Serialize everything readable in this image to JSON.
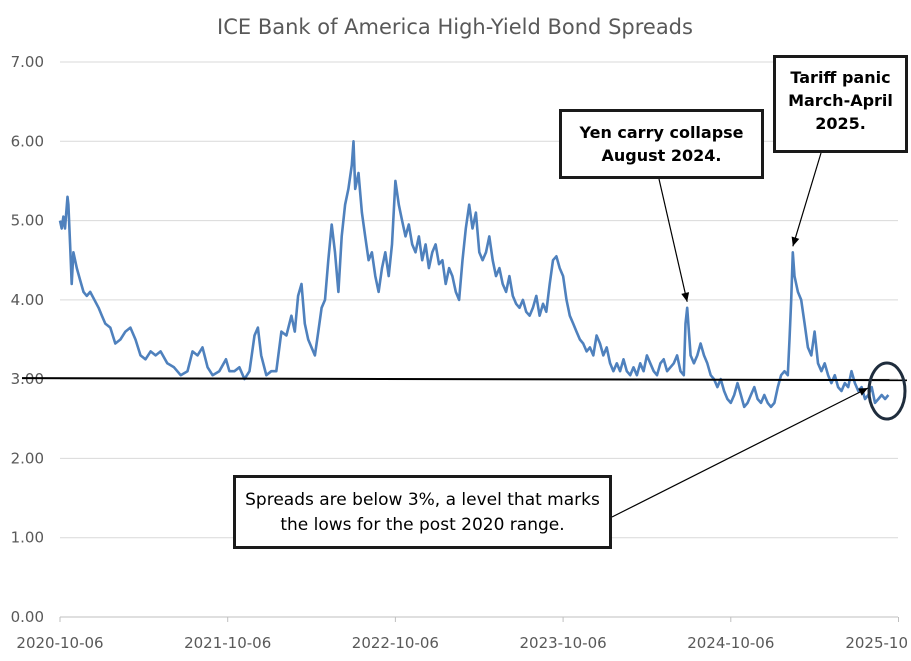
{
  "chart_data": {
    "type": "line",
    "title": "ICE Bank of America High-Yield Bond Spreads",
    "xlabel": "",
    "ylabel": "",
    "ylim": [
      0,
      7
    ],
    "yticks": [
      "0.00",
      "1.00",
      "2.00",
      "3.00",
      "4.00",
      "5.00",
      "6.00",
      "7.00"
    ],
    "grid": true,
    "xticks": [
      {
        "label": "2020-10-06",
        "t": 0
      },
      {
        "label": "2021-10-06",
        "t": 1
      },
      {
        "label": "2022-10-06",
        "t": 2
      },
      {
        "label": "2023-10-06",
        "t": 3
      },
      {
        "label": "2024-10-06",
        "t": 4
      },
      {
        "label": "2025-10",
        "t": 5
      }
    ],
    "x_unit": "years since 2020-10-06",
    "series": [
      {
        "name": "High-Yield Bond Spread (%)",
        "color": "#4f81bd",
        "points": [
          [
            0.0,
            5.0
          ],
          [
            0.01,
            4.9
          ],
          [
            0.02,
            5.05
          ],
          [
            0.03,
            4.9
          ],
          [
            0.045,
            5.3
          ],
          [
            0.05,
            5.2
          ],
          [
            0.06,
            4.7
          ],
          [
            0.07,
            4.2
          ],
          [
            0.08,
            4.6
          ],
          [
            0.1,
            4.4
          ],
          [
            0.12,
            4.25
          ],
          [
            0.14,
            4.1
          ],
          [
            0.16,
            4.05
          ],
          [
            0.18,
            4.1
          ],
          [
            0.23,
            3.9
          ],
          [
            0.25,
            3.8
          ],
          [
            0.27,
            3.7
          ],
          [
            0.3,
            3.65
          ],
          [
            0.33,
            3.45
          ],
          [
            0.36,
            3.5
          ],
          [
            0.39,
            3.6
          ],
          [
            0.42,
            3.65
          ],
          [
            0.45,
            3.5
          ],
          [
            0.48,
            3.3
          ],
          [
            0.51,
            3.25
          ],
          [
            0.54,
            3.35
          ],
          [
            0.57,
            3.3
          ],
          [
            0.6,
            3.35
          ],
          [
            0.64,
            3.2
          ],
          [
            0.68,
            3.15
          ],
          [
            0.72,
            3.05
          ],
          [
            0.76,
            3.1
          ],
          [
            0.79,
            3.35
          ],
          [
            0.82,
            3.3
          ],
          [
            0.85,
            3.4
          ],
          [
            0.88,
            3.15
          ],
          [
            0.91,
            3.05
          ],
          [
            0.95,
            3.1
          ],
          [
            0.99,
            3.25
          ],
          [
            1.01,
            3.1
          ],
          [
            1.04,
            3.1
          ],
          [
            1.07,
            3.15
          ],
          [
            1.1,
            3.0
          ],
          [
            1.13,
            3.1
          ],
          [
            1.16,
            3.55
          ],
          [
            1.18,
            3.65
          ],
          [
            1.2,
            3.3
          ],
          [
            1.23,
            3.05
          ],
          [
            1.26,
            3.1
          ],
          [
            1.29,
            3.1
          ],
          [
            1.32,
            3.6
          ],
          [
            1.35,
            3.55
          ],
          [
            1.38,
            3.8
          ],
          [
            1.4,
            3.6
          ],
          [
            1.42,
            4.05
          ],
          [
            1.44,
            4.2
          ],
          [
            1.46,
            3.7
          ],
          [
            1.48,
            3.5
          ],
          [
            1.5,
            3.4
          ],
          [
            1.52,
            3.3
          ],
          [
            1.54,
            3.6
          ],
          [
            1.56,
            3.9
          ],
          [
            1.58,
            4.0
          ],
          [
            1.6,
            4.5
          ],
          [
            1.62,
            4.95
          ],
          [
            1.64,
            4.6
          ],
          [
            1.66,
            4.1
          ],
          [
            1.68,
            4.8
          ],
          [
            1.7,
            5.2
          ],
          [
            1.72,
            5.4
          ],
          [
            1.74,
            5.7
          ],
          [
            1.75,
            6.0
          ],
          [
            1.76,
            5.4
          ],
          [
            1.78,
            5.6
          ],
          [
            1.8,
            5.1
          ],
          [
            1.82,
            4.8
          ],
          [
            1.84,
            4.5
          ],
          [
            1.86,
            4.6
          ],
          [
            1.88,
            4.3
          ],
          [
            1.9,
            4.1
          ],
          [
            1.92,
            4.4
          ],
          [
            1.94,
            4.6
          ],
          [
            1.96,
            4.3
          ],
          [
            1.98,
            4.7
          ],
          [
            2.0,
            5.5
          ],
          [
            2.02,
            5.2
          ],
          [
            2.04,
            5.0
          ],
          [
            2.06,
            4.8
          ],
          [
            2.08,
            4.95
          ],
          [
            2.1,
            4.7
          ],
          [
            2.12,
            4.6
          ],
          [
            2.14,
            4.8
          ],
          [
            2.16,
            4.5
          ],
          [
            2.18,
            4.7
          ],
          [
            2.2,
            4.4
          ],
          [
            2.22,
            4.6
          ],
          [
            2.24,
            4.7
          ],
          [
            2.26,
            4.45
          ],
          [
            2.28,
            4.5
          ],
          [
            2.3,
            4.2
          ],
          [
            2.32,
            4.4
          ],
          [
            2.34,
            4.3
          ],
          [
            2.36,
            4.1
          ],
          [
            2.38,
            4.0
          ],
          [
            2.4,
            4.5
          ],
          [
            2.42,
            4.9
          ],
          [
            2.44,
            5.2
          ],
          [
            2.46,
            4.9
          ],
          [
            2.48,
            5.1
          ],
          [
            2.5,
            4.6
          ],
          [
            2.52,
            4.5
          ],
          [
            2.54,
            4.6
          ],
          [
            2.56,
            4.8
          ],
          [
            2.58,
            4.5
          ],
          [
            2.6,
            4.3
          ],
          [
            2.62,
            4.4
          ],
          [
            2.64,
            4.2
          ],
          [
            2.66,
            4.1
          ],
          [
            2.68,
            4.3
          ],
          [
            2.7,
            4.05
          ],
          [
            2.72,
            3.95
          ],
          [
            2.74,
            3.9
          ],
          [
            2.76,
            4.0
          ],
          [
            2.78,
            3.85
          ],
          [
            2.8,
            3.8
          ],
          [
            2.82,
            3.9
          ],
          [
            2.84,
            4.05
          ],
          [
            2.86,
            3.8
          ],
          [
            2.88,
            3.95
          ],
          [
            2.9,
            3.85
          ],
          [
            2.92,
            4.2
          ],
          [
            2.94,
            4.5
          ],
          [
            2.96,
            4.55
          ],
          [
            2.98,
            4.4
          ],
          [
            3.0,
            4.3
          ],
          [
            3.02,
            4.0
          ],
          [
            3.04,
            3.8
          ],
          [
            3.06,
            3.7
          ],
          [
            3.08,
            3.6
          ],
          [
            3.1,
            3.5
          ],
          [
            3.12,
            3.45
          ],
          [
            3.14,
            3.35
          ],
          [
            3.16,
            3.4
          ],
          [
            3.18,
            3.3
          ],
          [
            3.2,
            3.55
          ],
          [
            3.22,
            3.45
          ],
          [
            3.24,
            3.3
          ],
          [
            3.26,
            3.4
          ],
          [
            3.28,
            3.2
          ],
          [
            3.3,
            3.1
          ],
          [
            3.32,
            3.2
          ],
          [
            3.34,
            3.1
          ],
          [
            3.36,
            3.25
          ],
          [
            3.38,
            3.1
          ],
          [
            3.4,
            3.05
          ],
          [
            3.42,
            3.15
          ],
          [
            3.44,
            3.05
          ],
          [
            3.46,
            3.2
          ],
          [
            3.48,
            3.1
          ],
          [
            3.5,
            3.3
          ],
          [
            3.52,
            3.2
          ],
          [
            3.54,
            3.1
          ],
          [
            3.56,
            3.05
          ],
          [
            3.58,
            3.2
          ],
          [
            3.6,
            3.25
          ],
          [
            3.62,
            3.1
          ],
          [
            3.64,
            3.15
          ],
          [
            3.66,
            3.2
          ],
          [
            3.68,
            3.3
          ],
          [
            3.7,
            3.1
          ],
          [
            3.72,
            3.05
          ],
          [
            3.73,
            3.7
          ],
          [
            3.74,
            3.9
          ],
          [
            3.75,
            3.6
          ],
          [
            3.76,
            3.3
          ],
          [
            3.78,
            3.2
          ],
          [
            3.8,
            3.3
          ],
          [
            3.82,
            3.45
          ],
          [
            3.84,
            3.3
          ],
          [
            3.86,
            3.2
          ],
          [
            3.88,
            3.05
          ],
          [
            3.9,
            3.0
          ],
          [
            3.92,
            2.9
          ],
          [
            3.94,
            3.0
          ],
          [
            3.96,
            2.85
          ],
          [
            3.98,
            2.75
          ],
          [
            4.0,
            2.7
          ],
          [
            4.02,
            2.8
          ],
          [
            4.04,
            2.95
          ],
          [
            4.06,
            2.8
          ],
          [
            4.08,
            2.65
          ],
          [
            4.1,
            2.7
          ],
          [
            4.12,
            2.8
          ],
          [
            4.14,
            2.9
          ],
          [
            4.16,
            2.75
          ],
          [
            4.18,
            2.7
          ],
          [
            4.2,
            2.8
          ],
          [
            4.22,
            2.7
          ],
          [
            4.24,
            2.65
          ],
          [
            4.26,
            2.7
          ],
          [
            4.28,
            2.9
          ],
          [
            4.3,
            3.05
          ],
          [
            4.32,
            3.1
          ],
          [
            4.34,
            3.05
          ],
          [
            4.35,
            3.5
          ],
          [
            4.36,
            4.0
          ],
          [
            4.37,
            4.6
          ],
          [
            4.38,
            4.3
          ],
          [
            4.4,
            4.1
          ],
          [
            4.42,
            4.0
          ],
          [
            4.44,
            3.7
          ],
          [
            4.46,
            3.4
          ],
          [
            4.48,
            3.3
          ],
          [
            4.5,
            3.6
          ],
          [
            4.52,
            3.2
          ],
          [
            4.54,
            3.1
          ],
          [
            4.56,
            3.2
          ],
          [
            4.58,
            3.05
          ],
          [
            4.6,
            2.95
          ],
          [
            4.62,
            3.05
          ],
          [
            4.64,
            2.9
          ],
          [
            4.66,
            2.85
          ],
          [
            4.68,
            2.95
          ],
          [
            4.7,
            2.9
          ],
          [
            4.72,
            3.1
          ],
          [
            4.74,
            2.95
          ],
          [
            4.76,
            2.85
          ],
          [
            4.78,
            2.9
          ],
          [
            4.8,
            2.75
          ],
          [
            4.82,
            2.8
          ],
          [
            4.84,
            2.9
          ],
          [
            4.86,
            2.7
          ],
          [
            4.88,
            2.75
          ],
          [
            4.9,
            2.8
          ],
          [
            4.92,
            2.75
          ],
          [
            4.94,
            2.8
          ]
        ]
      }
    ],
    "reference_line": {
      "y": 3.0,
      "color": "#000000"
    },
    "annotations": [
      {
        "id": "yen",
        "lines": [
          "Yen carry collapse",
          "August 2024."
        ],
        "points_to": [
          3.74,
          3.9
        ]
      },
      {
        "id": "tariff",
        "lines": [
          "Tariff panic",
          "March-April",
          "2025."
        ],
        "points_to": [
          4.37,
          4.6
        ]
      },
      {
        "id": "spreads",
        "lines": [
          "Spreads are below 3%, a level that marks",
          "the lows for the post 2020 range."
        ],
        "points_to": [
          4.83,
          2.95
        ]
      }
    ]
  }
}
